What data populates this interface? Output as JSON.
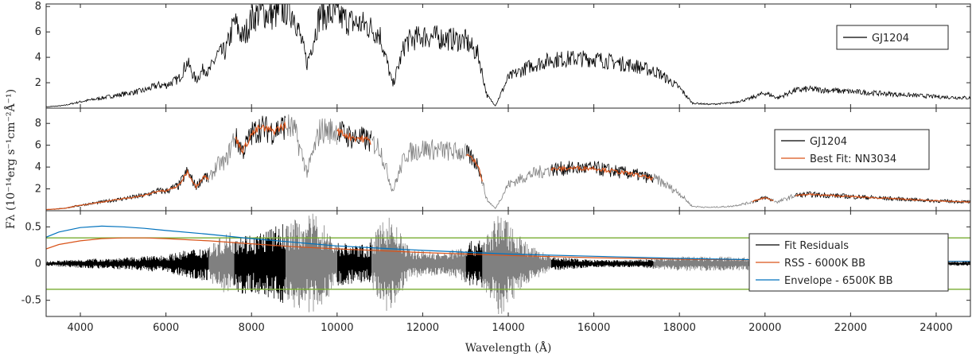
{
  "chart_data": {
    "type": "line",
    "xlabel": "Wavelength (Å)",
    "ylabel": "F_λ (10^-14 erg s^-1 cm^-2 Å^-1)",
    "ylabel_display": "Fλ (10⁻¹⁴erg s⁻¹cm⁻²Å⁻¹)",
    "xlim": [
      3200,
      24800
    ],
    "xticks": [
      4000,
      6000,
      8000,
      10000,
      12000,
      14000,
      16000,
      18000,
      20000,
      22000,
      24000
    ],
    "colors": {
      "spectrum": "#000000",
      "masked": "#808080",
      "fit": "#d95319",
      "envelope": "#0072bd",
      "threshold": "#77ac30"
    },
    "panels": [
      {
        "ylim": [
          0,
          8.2
        ],
        "yticks": [
          2,
          4,
          6,
          8
        ],
        "legend_position": "top-right",
        "legend": [
          "GJ1204"
        ],
        "series": [
          {
            "name": "GJ1204",
            "x": [
              3200,
              3600,
              4000,
              4500,
              5000,
              5500,
              5800,
              6000,
              6300,
              6500,
              6700,
              6900,
              7000,
              7200,
              7400,
              7600,
              7800,
              8000,
              8200,
              8500,
              8800,
              9000,
              9300,
              9600,
              10000,
              10300,
              10700,
              11000,
              11300,
              11600,
              12000,
              12500,
              13000,
              13300,
              13500,
              13700,
              14000,
              14500,
              15000,
              15500,
              16000,
              16500,
              17000,
              17500,
              18000,
              18300,
              18700,
              19200,
              19600,
              20000,
              20300,
              20700,
              21000,
              22000,
              23000,
              24000,
              24800
            ],
            "values": [
              0.1,
              0.2,
              0.5,
              0.8,
              1.1,
              1.4,
              1.8,
              1.8,
              2.3,
              3.6,
              2.2,
              3.2,
              2.8,
              4.2,
              4.5,
              6.8,
              5.5,
              7.0,
              7.6,
              7.3,
              7.8,
              7.4,
              3.5,
              7.4,
              7.3,
              6.8,
              6.5,
              5.8,
              1.8,
              5.2,
              5.7,
              5.5,
              5.3,
              4.2,
              1.0,
              0.2,
              2.4,
              3.3,
              3.8,
              3.9,
              3.9,
              3.6,
              3.3,
              2.8,
              1.6,
              0.4,
              0.3,
              0.4,
              0.7,
              1.2,
              0.8,
              1.4,
              1.5,
              1.3,
              1.1,
              0.9,
              0.8
            ]
          }
        ]
      },
      {
        "ylim": [
          0,
          9.4
        ],
        "yticks": [
          2,
          4,
          6,
          8
        ],
        "legend_position": "top-right",
        "legend": [
          "GJ1204",
          "Best Fit: NN3034"
        ],
        "series": [
          {
            "name": "GJ1204",
            "x": [
              3200,
              3600,
              4000,
              4500,
              5000,
              5500,
              5800,
              6000,
              6300,
              6500,
              6700,
              6900,
              7000,
              7200,
              7400,
              7600,
              7800,
              8000,
              8200,
              8500,
              8800,
              9000,
              9300,
              9600,
              10000,
              10300,
              10700,
              11000,
              11300,
              11600,
              12000,
              12500,
              13000,
              13300,
              13500,
              13700,
              14000,
              14500,
              15000,
              15500,
              16000,
              16500,
              17000,
              17500,
              18000,
              18300,
              18700,
              19200,
              19600,
              20000,
              20300,
              20700,
              21000,
              22000,
              23000,
              24000,
              24800
            ],
            "values": [
              0.1,
              0.2,
              0.5,
              0.8,
              1.1,
              1.4,
              1.8,
              1.8,
              2.3,
              3.6,
              2.2,
              3.2,
              2.8,
              4.2,
              4.5,
              6.8,
              5.5,
              7.0,
              7.6,
              7.3,
              7.8,
              7.4,
              3.5,
              7.4,
              7.3,
              6.8,
              6.5,
              5.8,
              1.8,
              5.2,
              5.7,
              5.5,
              5.3,
              4.2,
              1.0,
              0.2,
              2.4,
              3.3,
              3.8,
              3.9,
              3.9,
              3.6,
              3.3,
              2.8,
              1.6,
              0.4,
              0.3,
              0.4,
              0.7,
              1.2,
              0.8,
              1.4,
              1.5,
              1.3,
              1.1,
              0.9,
              0.8
            ]
          },
          {
            "name": "Best Fit: NN3034",
            "x": [
              3200,
              3600,
              4000,
              4500,
              5000,
              5500,
              5800,
              6000,
              6300,
              6500,
              6700,
              6900,
              7000,
              7200,
              7400,
              7600,
              7800,
              8000,
              8200,
              8500,
              8800,
              9000,
              9300,
              9600,
              10000,
              10300,
              10700,
              11000,
              11300,
              11600,
              12000,
              12500,
              13000,
              13300,
              13500,
              13700,
              14000,
              14500,
              15000,
              15500,
              16000,
              16500,
              17000,
              17500,
              18000,
              18300,
              18700,
              19200,
              19600,
              20000,
              20300,
              20700,
              21000,
              22000,
              23000,
              24000,
              24800
            ],
            "values": [
              0.1,
              0.2,
              0.5,
              0.8,
              1.1,
              1.4,
              1.8,
              1.8,
              2.3,
              3.6,
              2.2,
              3.2,
              2.8,
              4.2,
              4.5,
              6.8,
              5.5,
              7.0,
              7.6,
              7.3,
              7.8,
              7.4,
              3.5,
              7.4,
              7.3,
              6.8,
              6.5,
              5.8,
              1.8,
              5.2,
              5.7,
              5.5,
              5.3,
              4.2,
              1.0,
              0.2,
              2.4,
              3.3,
              3.8,
              3.9,
              3.9,
              3.6,
              3.3,
              2.8,
              1.6,
              0.4,
              0.3,
              0.4,
              0.7,
              1.2,
              0.8,
              1.4,
              1.5,
              1.3,
              1.1,
              0.9,
              0.8
            ]
          }
        ],
        "masked_ranges": [
          [
            7000,
            7600
          ],
          [
            8800,
            10000
          ],
          [
            10800,
            13000
          ],
          [
            13400,
            15000
          ],
          [
            17400,
            19700
          ],
          [
            20200,
            20700
          ]
        ]
      },
      {
        "ylim": [
          -0.72,
          0.72
        ],
        "yticks": [
          -0.5,
          0,
          0.5
        ],
        "legend_position": "right",
        "legend": [
          "Fit Residuals",
          "RSS - 6000K BB",
          "Envelope - 6500K BB"
        ],
        "threshold_lines": [
          0.35,
          -0.35
        ],
        "series": [
          {
            "name": "Fit Residuals",
            "x": [
              3200,
              24800
            ],
            "values": [
              0,
              0
            ]
          },
          {
            "name": "RSS - 6000K BB",
            "x": [
              3200,
              3500,
              4000,
              4500,
              5000,
              5500,
              6000,
              7000,
              8000,
              9000,
              10000,
              12000,
              14000,
              16000,
              18000,
              20000,
              22000,
              24000,
              24800
            ],
            "values": [
              0.2,
              0.26,
              0.31,
              0.34,
              0.35,
              0.35,
              0.34,
              0.31,
              0.27,
              0.23,
              0.2,
              0.15,
              0.11,
              0.08,
              0.06,
              0.05,
              0.04,
              0.03,
              0.03
            ]
          },
          {
            "name": "Envelope - 6500K BB",
            "x": [
              3200,
              3500,
              4000,
              4500,
              5000,
              5500,
              6000,
              7000,
              8000,
              9000,
              10000,
              12000,
              14000,
              16000,
              18000,
              20000,
              22000,
              24000,
              24800
            ],
            "values": [
              0.36,
              0.43,
              0.49,
              0.51,
              0.5,
              0.48,
              0.45,
              0.4,
              0.34,
              0.29,
              0.24,
              0.18,
              0.13,
              0.1,
              0.07,
              0.05,
              0.04,
              0.03,
              0.03
            ]
          }
        ],
        "residual_amplitude": [
          [
            3200,
            0.03
          ],
          [
            4000,
            0.06
          ],
          [
            5000,
            0.08
          ],
          [
            6000,
            0.12
          ],
          [
            7000,
            0.25
          ],
          [
            7500,
            0.45
          ],
          [
            8000,
            0.4
          ],
          [
            9000,
            0.6
          ],
          [
            9500,
            0.7
          ],
          [
            10000,
            0.3
          ],
          [
            10700,
            0.25
          ],
          [
            11200,
            0.7
          ],
          [
            11700,
            0.2
          ],
          [
            12500,
            0.15
          ],
          [
            13500,
            0.4
          ],
          [
            13800,
            0.72
          ],
          [
            14500,
            0.25
          ],
          [
            15000,
            0.1
          ],
          [
            16000,
            0.05
          ],
          [
            17000,
            0.05
          ],
          [
            18000,
            0.1
          ],
          [
            19000,
            0.1
          ],
          [
            20000,
            0.08
          ],
          [
            21000,
            0.04
          ],
          [
            24800,
            0.03
          ]
        ]
      }
    ]
  }
}
